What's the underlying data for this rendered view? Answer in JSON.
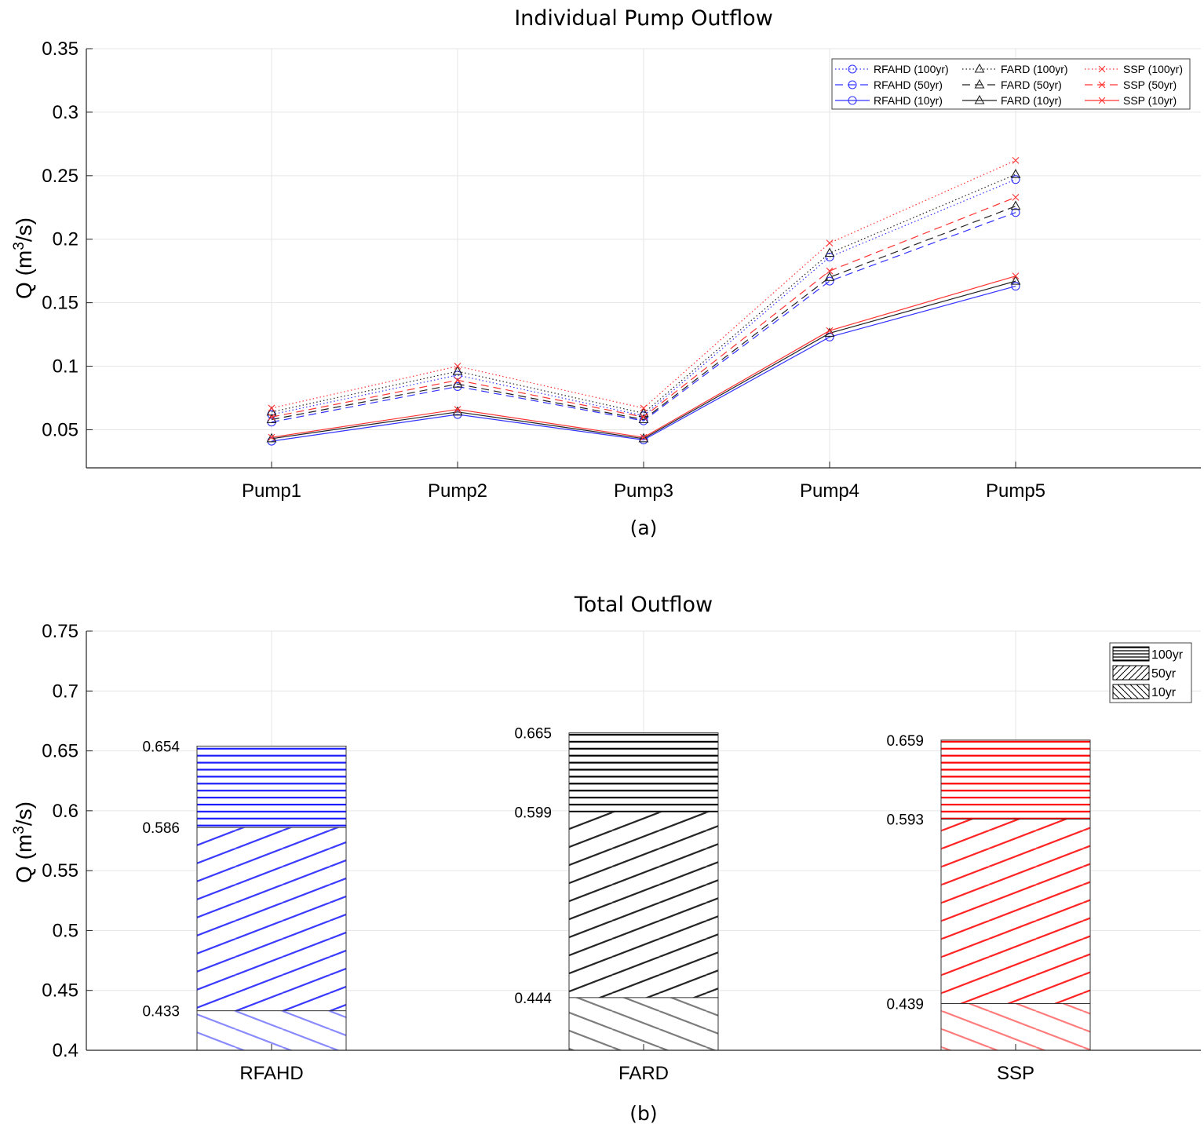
{
  "chart_data": [
    {
      "type": "line",
      "title": "Individual Pump Outflow",
      "panel_label": "(a)",
      "xlabel": "",
      "ylabel": "Q (m3/s)",
      "ylim": [
        0.02,
        0.35
      ],
      "yticks": [
        0.05,
        0.1,
        0.15,
        0.2,
        0.25,
        0.3,
        0.35
      ],
      "ytick_labels": [
        "0.05",
        "0.1",
        "0.15",
        "0.2",
        "0.25",
        "0.3",
        "0.35"
      ],
      "categories": [
        "Pump1",
        "Pump2",
        "Pump3",
        "Pump4",
        "Pump5"
      ],
      "grid": true,
      "legend_position": "top-right",
      "series": [
        {
          "name": "RFAHD (100yr)",
          "color": "#3333ff",
          "dash": "dotted",
          "marker": "circle",
          "values": [
            0.062,
            0.093,
            0.061,
            0.186,
            0.247
          ]
        },
        {
          "name": "RFAHD (50yr)",
          "color": "#3333ff",
          "dash": "dashed",
          "marker": "circle",
          "values": [
            0.056,
            0.084,
            0.057,
            0.167,
            0.221
          ]
        },
        {
          "name": "RFAHD (10yr)",
          "color": "#3333ff",
          "dash": "solid",
          "marker": "circle",
          "values": [
            0.041,
            0.062,
            0.042,
            0.123,
            0.163
          ]
        },
        {
          "name": "FARD (100yr)",
          "color": "#222222",
          "dash": "dotted",
          "marker": "triangle",
          "values": [
            0.064,
            0.096,
            0.063,
            0.189,
            0.251
          ]
        },
        {
          "name": "FARD (50yr)",
          "color": "#222222",
          "dash": "dashed",
          "marker": "triangle",
          "values": [
            0.058,
            0.086,
            0.058,
            0.17,
            0.226
          ]
        },
        {
          "name": "FARD (10yr)",
          "color": "#222222",
          "dash": "solid",
          "marker": "triangle",
          "values": [
            0.043,
            0.064,
            0.043,
            0.126,
            0.167
          ]
        },
        {
          "name": "SSP (100yr)",
          "color": "#ff3333",
          "dash": "dotted",
          "marker": "x",
          "values": [
            0.067,
            0.1,
            0.067,
            0.197,
            0.262
          ]
        },
        {
          "name": "SSP (50yr)",
          "color": "#ff3333",
          "dash": "dashed",
          "marker": "x",
          "values": [
            0.06,
            0.089,
            0.06,
            0.175,
            0.233
          ]
        },
        {
          "name": "SSP (10yr)",
          "color": "#ff3333",
          "dash": "solid",
          "marker": "x",
          "values": [
            0.044,
            0.066,
            0.044,
            0.128,
            0.171
          ]
        }
      ]
    },
    {
      "type": "bar",
      "title": "Total Outflow",
      "panel_label": "(b)",
      "xlabel": "",
      "ylabel": "Q (m3/s)",
      "ylim": [
        0.4,
        0.75
      ],
      "yticks": [
        0.4,
        0.45,
        0.5,
        0.55,
        0.6,
        0.65,
        0.7,
        0.75
      ],
      "ytick_labels": [
        "0.4",
        "0.45",
        "0.5",
        "0.55",
        "0.6",
        "0.65",
        "0.7",
        "0.75"
      ],
      "categories": [
        "RFAHD",
        "FARD",
        "SSP"
      ],
      "colors": [
        "#1a1aff",
        "#000000",
        "#ff0000"
      ],
      "grid": true,
      "legend_position": "top-right",
      "series": [
        {
          "name": "10yr",
          "hatch": "backslash",
          "values": [
            0.433,
            0.444,
            0.439
          ],
          "labels": [
            "0.433",
            "0.444",
            "0.439"
          ]
        },
        {
          "name": "50yr",
          "hatch": "slash",
          "values": [
            0.586,
            0.599,
            0.593
          ],
          "labels": [
            "0.586",
            "0.599",
            "0.593"
          ]
        },
        {
          "name": "100yr",
          "hatch": "horizontal",
          "values": [
            0.654,
            0.665,
            0.659
          ],
          "labels": [
            "0.654",
            "0.665",
            "0.659"
          ]
        }
      ],
      "legend_entries": [
        "100yr",
        "50yr",
        "10yr"
      ]
    }
  ]
}
